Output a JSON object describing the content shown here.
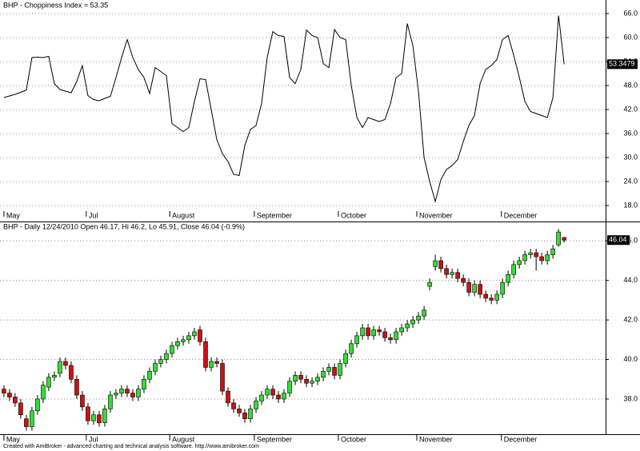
{
  "chart_data": [
    {
      "type": "line",
      "title": "BHP - Choppiness Index = 53.35",
      "color": "#000000",
      "grid": true,
      "series": [
        {
          "values": [
            45.0,
            45.4,
            45.8,
            46.3,
            46.9,
            55.0,
            55.1,
            55.0,
            55.3,
            48.5,
            47.0,
            46.6,
            46.2,
            49.0,
            53.0,
            45.5,
            44.5,
            44.2,
            44.8,
            45.3,
            50.0,
            55.0,
            59.5,
            55.0,
            52.0,
            50.0,
            46.0,
            52.5,
            51.5,
            50.5,
            38.5,
            37.5,
            36.5,
            37.5,
            44.0,
            49.7,
            49.5,
            42.0,
            34.5,
            31.0,
            29.0,
            25.8,
            25.5,
            33.0,
            37.0,
            38.0,
            43.5,
            55.0,
            61.5,
            60.5,
            60.3,
            50.0,
            48.5,
            52.0,
            61.9,
            60.5,
            60.0,
            53.5,
            52.5,
            62.0,
            60.0,
            59.5,
            48.0,
            40.0,
            37.5,
            40.0,
            39.5,
            39.0,
            39.5,
            43.5,
            50.0,
            51.0,
            63.5,
            58.0,
            46.5,
            30.0,
            24.0,
            19.0,
            24.5,
            27.0,
            28.0,
            29.5,
            34.0,
            38.0,
            40.5,
            48.5,
            52.0,
            53.0,
            54.5,
            59.5,
            60.5,
            55.5,
            50.0,
            44.0,
            41.5,
            41.0,
            40.5,
            40.0,
            45.0,
            65.5,
            53.3479
          ]
        }
      ],
      "xlim": [
        -0.7,
        107.4
      ],
      "xticks": [
        {
          "value": 0,
          "label": "May"
        },
        {
          "value": 14.7,
          "label": "Jul"
        },
        {
          "value": 29.6,
          "label": "August"
        },
        {
          "value": 44.7,
          "label": "September"
        },
        {
          "value": 59.7,
          "label": "October"
        },
        {
          "value": 73.7,
          "label": "November"
        },
        {
          "value": 88.8,
          "label": "December"
        }
      ],
      "ylim": [
        17,
        69
      ],
      "yticks": [
        {
          "value": 18,
          "label": "18.0"
        },
        {
          "value": 24,
          "label": "24.0"
        },
        {
          "value": 30,
          "label": "30.0"
        },
        {
          "value": 36,
          "label": "36.0"
        },
        {
          "value": 42,
          "label": "42.0"
        },
        {
          "value": 48,
          "label": "48.0"
        },
        {
          "value": 54,
          "label": "54.0"
        },
        {
          "value": 60,
          "label": "60.0"
        },
        {
          "value": 66,
          "label": "66.0"
        }
      ]
    },
    {
      "type": "candlestick",
      "title": "BHP - Daily 12/24/2010 Open 46.17, Hi 46.2, Lo 45.91, Close 46.04 (-0.9%)",
      "up_color": "#33dd33",
      "down_color": "#cc1111",
      "grid": true,
      "open": [
        38.5,
        38.3,
        38.1,
        37.8,
        37.0,
        36.6,
        37.4,
        38.0,
        38.6,
        39.1,
        39.3,
        39.9,
        39.7,
        39.0,
        38.2,
        37.6,
        36.9,
        37.2,
        36.8,
        37.5,
        38.2,
        38.3,
        38.5,
        38.3,
        38.1,
        38.5,
        39.0,
        39.4,
        39.8,
        40.0,
        40.3,
        40.7,
        40.9,
        41.0,
        41.2,
        41.5,
        40.9,
        39.6,
        39.9,
        39.8,
        38.4,
        37.8,
        37.5,
        37.3,
        37.0,
        37.5,
        37.9,
        38.2,
        38.5,
        38.2,
        38.0,
        38.3,
        38.9,
        39.2,
        39.0,
        38.8,
        38.9,
        39.1,
        39.4,
        39.6,
        39.2,
        39.8,
        40.3,
        40.8,
        41.2,
        41.6,
        41.2,
        41.5,
        41.4,
        41.1,
        41.0,
        41.4,
        41.6,
        41.8,
        42.0,
        42.2,
        43.7,
        44.7,
        45.0,
        44.6,
        44.3,
        44.4,
        44.1,
        43.9,
        43.4,
        43.8,
        43.3,
        43.1,
        43.0,
        43.3,
        43.9,
        44.3,
        44.8,
        45.0,
        45.3,
        45.4,
        45.2,
        45.0,
        45.3,
        45.8,
        46.17
      ],
      "high": [
        38.7,
        38.5,
        38.3,
        38.0,
        37.2,
        37.6,
        38.2,
        38.9,
        39.3,
        39.4,
        40.1,
        40.1,
        39.9,
        39.2,
        38.4,
        37.8,
        37.4,
        37.4,
        37.7,
        38.4,
        38.5,
        38.7,
        38.7,
        38.5,
        38.7,
        39.2,
        39.6,
        40.0,
        40.2,
        40.5,
        40.9,
        41.1,
        41.2,
        41.4,
        41.6,
        41.7,
        41.1,
        40.1,
        40.1,
        40.0,
        38.6,
        38.0,
        37.7,
        37.5,
        37.7,
        38.1,
        38.4,
        38.7,
        38.7,
        38.4,
        38.5,
        39.1,
        39.4,
        39.4,
        39.2,
        39.1,
        39.3,
        39.6,
        39.8,
        39.8,
        40.0,
        40.5,
        41.0,
        41.4,
        41.8,
        41.8,
        41.7,
        41.7,
        41.6,
        41.3,
        41.6,
        41.8,
        42.0,
        42.2,
        42.4,
        42.7,
        44.1,
        45.3,
        45.2,
        44.8,
        44.6,
        44.6,
        44.3,
        44.1,
        44.0,
        44.0,
        43.5,
        43.3,
        43.5,
        44.1,
        44.5,
        45.0,
        45.2,
        45.5,
        45.6,
        45.6,
        45.4,
        45.5,
        45.8,
        46.6,
        46.2
      ],
      "low": [
        38.1,
        37.9,
        37.6,
        37.0,
        36.4,
        36.4,
        37.2,
        37.8,
        38.4,
        38.9,
        39.1,
        39.5,
        38.8,
        38.0,
        37.4,
        36.7,
        36.7,
        36.6,
        36.6,
        37.3,
        38.0,
        38.1,
        38.1,
        37.9,
        37.9,
        38.3,
        38.8,
        39.2,
        39.6,
        39.8,
        40.1,
        40.5,
        40.7,
        40.8,
        41.0,
        40.7,
        39.4,
        39.4,
        39.6,
        38.2,
        37.6,
        37.3,
        37.1,
        36.8,
        36.8,
        37.3,
        37.7,
        38.0,
        38.0,
        37.8,
        37.8,
        38.1,
        38.7,
        38.8,
        38.6,
        38.6,
        38.7,
        38.9,
        39.2,
        39.0,
        39.0,
        39.6,
        40.1,
        40.6,
        41.0,
        41.0,
        41.0,
        41.2,
        40.9,
        40.8,
        40.8,
        41.2,
        41.4,
        41.6,
        41.8,
        42.0,
        43.5,
        44.5,
        44.4,
        44.1,
        44.1,
        43.9,
        43.7,
        43.2,
        43.2,
        43.1,
        42.9,
        42.8,
        42.8,
        43.1,
        43.7,
        44.1,
        44.6,
        44.8,
        45.1,
        44.5,
        44.8,
        44.8,
        45.1,
        45.7,
        45.91
      ],
      "close": [
        38.3,
        38.1,
        37.8,
        37.2,
        36.6,
        37.4,
        38.0,
        38.7,
        39.1,
        39.2,
        39.9,
        39.7,
        39.0,
        38.2,
        37.6,
        36.9,
        37.2,
        36.8,
        37.5,
        38.2,
        38.3,
        38.5,
        38.3,
        38.1,
        38.5,
        39.0,
        39.4,
        39.8,
        40.0,
        40.3,
        40.7,
        40.9,
        41.0,
        41.2,
        41.4,
        40.9,
        39.6,
        39.9,
        39.8,
        38.4,
        37.8,
        37.5,
        37.3,
        37.0,
        37.5,
        37.9,
        38.2,
        38.5,
        38.2,
        38.0,
        38.3,
        38.9,
        39.2,
        39.0,
        38.8,
        38.9,
        39.1,
        39.4,
        39.6,
        39.2,
        39.8,
        40.3,
        40.8,
        41.2,
        41.6,
        41.2,
        41.5,
        41.4,
        41.1,
        41.0,
        41.4,
        41.6,
        41.8,
        42.0,
        42.2,
        42.5,
        43.9,
        45.0,
        44.6,
        44.3,
        44.4,
        44.1,
        43.9,
        43.4,
        43.8,
        43.3,
        43.1,
        43.0,
        43.3,
        43.9,
        44.3,
        44.8,
        45.0,
        45.3,
        45.4,
        45.2,
        45.0,
        45.3,
        45.6,
        46.45,
        46.04
      ],
      "xlim": [
        -0.7,
        107.4
      ],
      "xticks": [
        {
          "value": 0,
          "label": "May"
        },
        {
          "value": 14.7,
          "label": "Jul"
        },
        {
          "value": 29.6,
          "label": "August"
        },
        {
          "value": 44.7,
          "label": "September"
        },
        {
          "value": 59.7,
          "label": "October"
        },
        {
          "value": 73.7,
          "label": "November"
        },
        {
          "value": 88.8,
          "label": "December"
        }
      ],
      "ylim": [
        36.3,
        46.9
      ],
      "yticks": [
        {
          "value": 38,
          "label": "38.0"
        },
        {
          "value": 40,
          "label": "40.0"
        },
        {
          "value": 42,
          "label": "42.0"
        },
        {
          "value": 44,
          "label": "44.0"
        },
        {
          "value": 46,
          "label": "46.0"
        }
      ]
    }
  ],
  "footer": "Created with AmiBroker - advanced charting and technical analysis software. http://www.amibroker.com"
}
